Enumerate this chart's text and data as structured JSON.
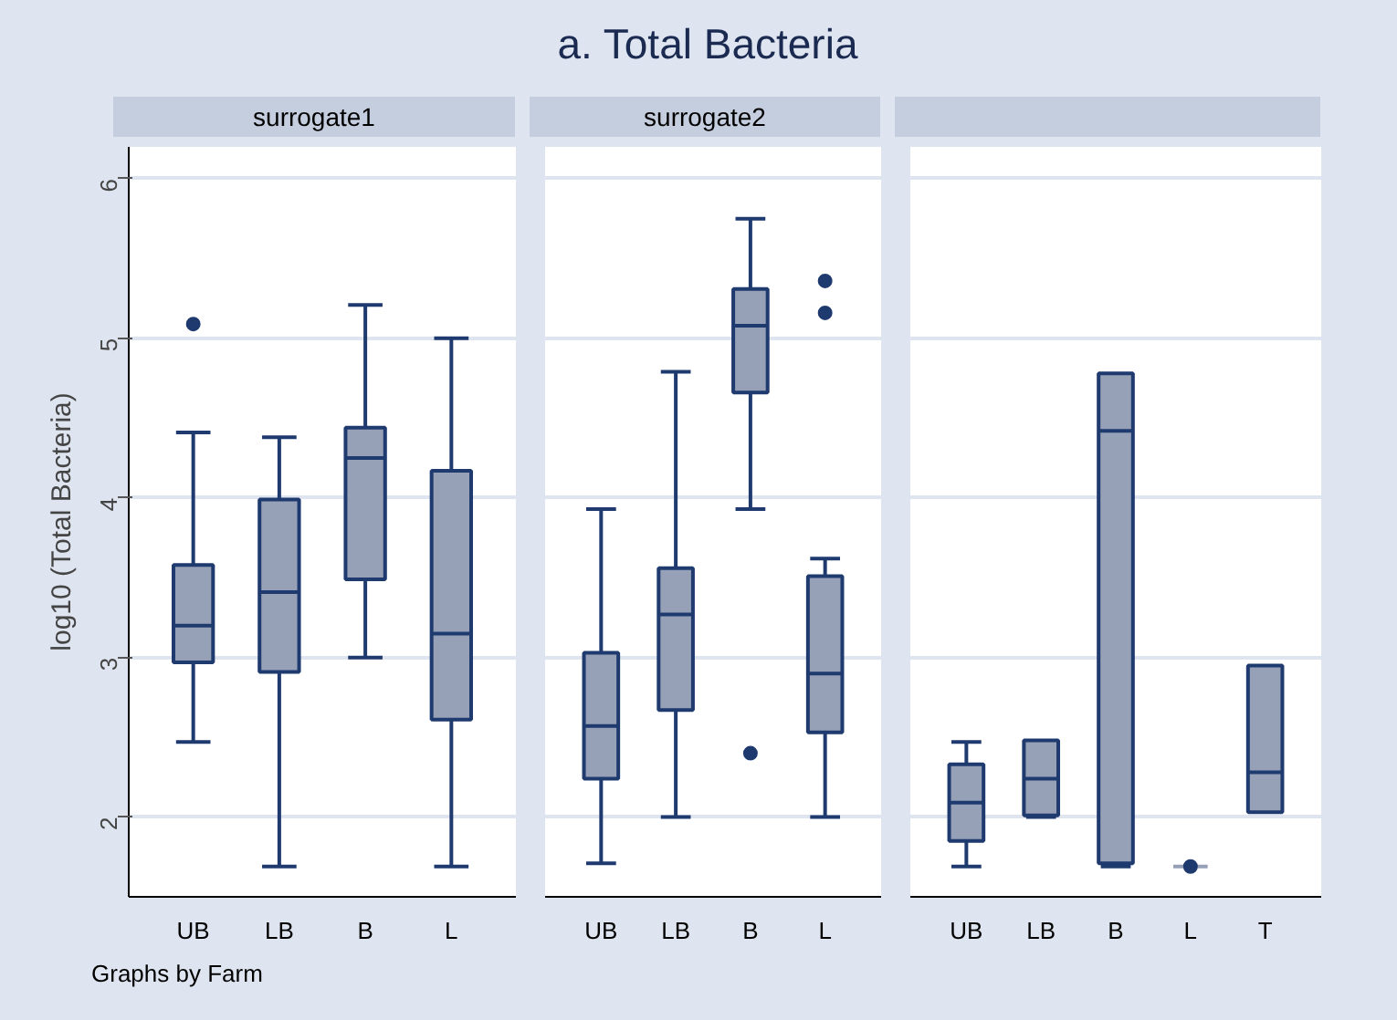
{
  "chart_data": [
    {
      "type": "box",
      "subtitle": "surrogate1",
      "ylabel": "log10 (Total Bacteria)",
      "color": "#96a0b6",
      "grid": "y",
      "ylim": [
        1.5,
        6.2
      ],
      "yticks": [
        2,
        3,
        4,
        5,
        6
      ],
      "categories": [
        "UB",
        "LB",
        "B",
        "L"
      ],
      "boxes": [
        {
          "low": 2.47,
          "q1": 2.97,
          "median": 3.2,
          "q3": 3.58,
          "high": 4.41,
          "outliers": [
            5.09
          ]
        },
        {
          "low": 1.69,
          "q1": 2.91,
          "median": 3.41,
          "q3": 3.99,
          "high": 4.38
        },
        {
          "low": 3.0,
          "q1": 3.49,
          "median": 4.25,
          "q3": 4.44,
          "high": 5.21
        },
        {
          "low": 1.69,
          "q1": 2.61,
          "median": 3.15,
          "q3": 4.17,
          "high": 5.0
        }
      ],
      "annotations": [
        "Graphs by Farm"
      ]
    },
    {
      "type": "box",
      "title": "a. Total Bacteria",
      "subtitle": "surrogate2",
      "color": "#96a0b6",
      "grid": "y",
      "ylim": [
        1.5,
        6.2
      ],
      "yticks": [
        2,
        3,
        4,
        5,
        6
      ],
      "tick_labels": "x",
      "categories": [
        "UB",
        "LB",
        "B",
        "L"
      ],
      "boxes": [
        {
          "low": 1.71,
          "q1": 2.24,
          "median": 2.57,
          "q3": 3.03,
          "high": 3.93
        },
        {
          "low": 2.0,
          "q1": 2.67,
          "median": 3.27,
          "q3": 3.56,
          "high": 4.79
        },
        {
          "low": 3.93,
          "q1": 4.66,
          "median": 5.08,
          "q3": 5.31,
          "high": 5.75,
          "outliers": [
            2.4
          ]
        },
        {
          "low": 2.0,
          "q1": 2.53,
          "median": 2.9,
          "q3": 3.51,
          "high": 3.62,
          "outliers": [
            5.36,
            5.16
          ]
        }
      ]
    },
    {
      "type": "box",
      "color": "#96a0b6",
      "grid": "y",
      "ylim": [
        1.5,
        6.2
      ],
      "yticks": [
        2,
        3,
        4,
        5,
        6
      ],
      "tick_labels": "x",
      "categories": [
        "UB",
        "LB",
        "B",
        "L",
        "T"
      ],
      "boxes": [
        {
          "low": 1.69,
          "q1": 1.85,
          "median": 2.09,
          "q3": 2.33,
          "high": 2.47
        },
        {
          "low": 2.0,
          "q1": 2.01,
          "median": 2.24,
          "q3": 2.48,
          "high": 2.48
        },
        {
          "low": 1.69,
          "q1": 1.71,
          "median": 4.42,
          "q3": 4.78,
          "high": 4.78
        },
        {
          "low": 1.69,
          "q1": 1.69,
          "median": 1.69,
          "q3": 1.69,
          "high": 1.69,
          "outliers": [
            1.69
          ]
        },
        {
          "low": 2.03,
          "q1": 2.03,
          "median": 2.28,
          "q3": 2.95,
          "high": 2.95
        }
      ]
    }
  ]
}
